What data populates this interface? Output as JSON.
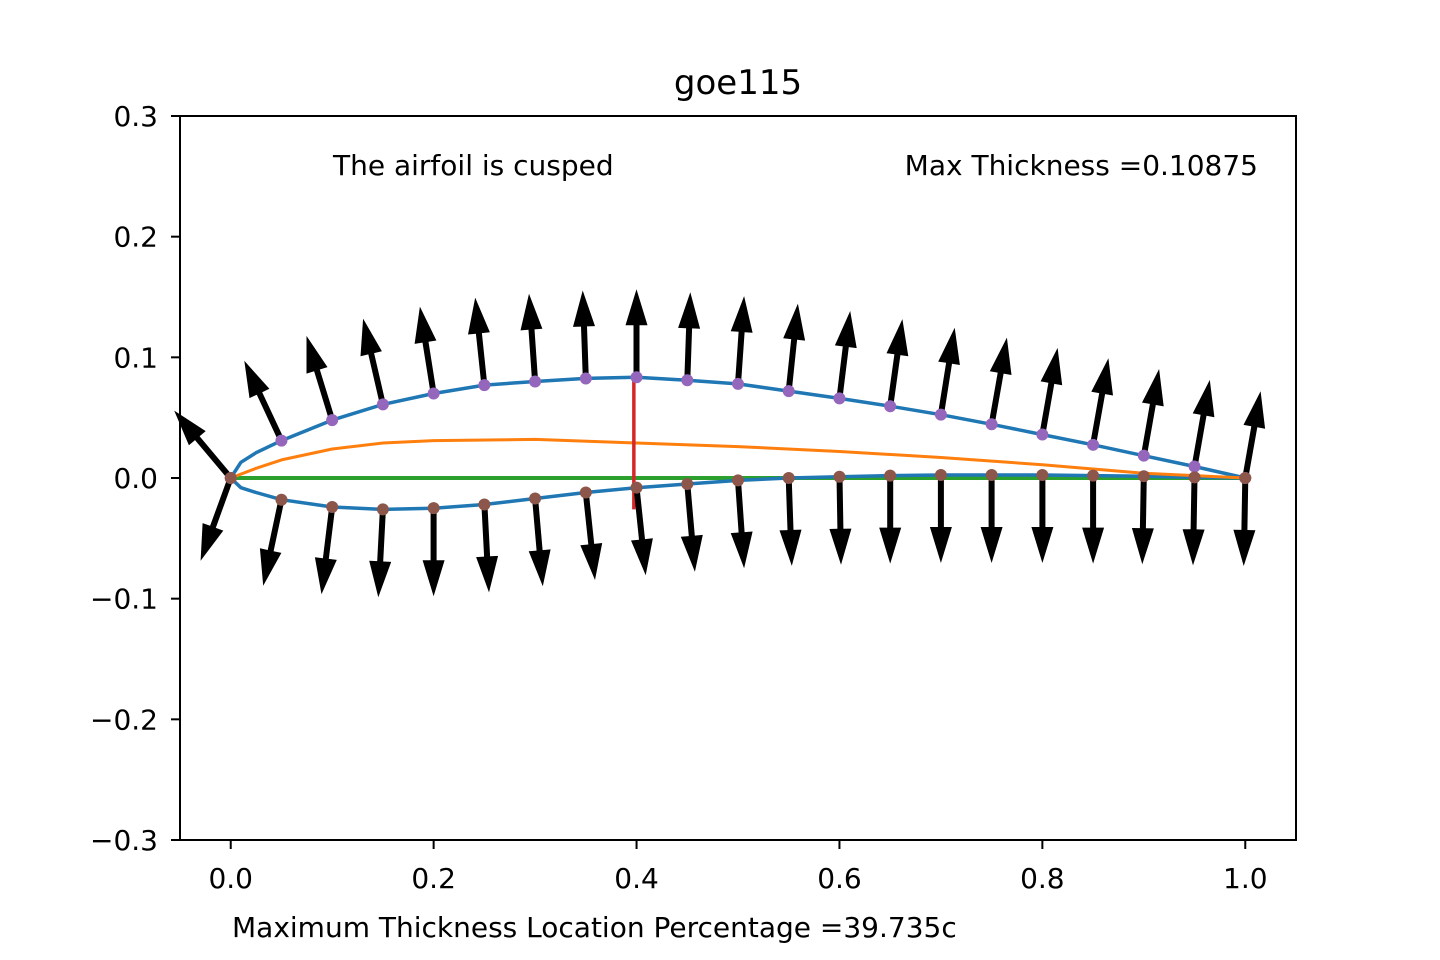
{
  "chart_data": {
    "type": "line",
    "title": "goe115",
    "xlabel": "Maximum Thickness Location Percentage =39.735c",
    "ylabel": "",
    "xlim": [
      -0.05,
      1.05
    ],
    "ylim": [
      -0.3,
      0.3
    ],
    "xticks": [
      "0.0",
      "0.2",
      "0.4",
      "0.6",
      "0.8",
      "1.0"
    ],
    "xtick_values": [
      0.0,
      0.2,
      0.4,
      0.6,
      0.8,
      1.0
    ],
    "yticks": [
      "0.3",
      "0.2",
      "0.1",
      "0.0",
      "−0.1",
      "−0.2",
      "−0.3"
    ],
    "ytick_values": [
      0.3,
      0.2,
      0.1,
      0.0,
      -0.1,
      -0.2,
      -0.3
    ],
    "grid": false,
    "annotations": {
      "cusped": "The airfoil is cusped",
      "max_thickness": "Max Thickness =0.10875"
    },
    "colors": {
      "profile": "#1f77b4",
      "camber": "#ff7f0e",
      "chord": "#2ca02c",
      "thickness_line": "#d62728",
      "upper_points": "#9467bd",
      "lower_points": "#8c564b",
      "normals": "#000000"
    },
    "series": [
      {
        "key": "upper",
        "x": [
          0.0,
          0.01,
          0.025,
          0.05,
          0.1,
          0.15,
          0.2,
          0.25,
          0.3,
          0.35,
          0.4,
          0.45,
          0.5,
          0.55,
          0.6,
          0.65,
          0.7,
          0.75,
          0.8,
          0.85,
          0.9,
          0.95,
          1.0
        ],
        "y": [
          0.0,
          0.013,
          0.021,
          0.031,
          0.048,
          0.061,
          0.07,
          0.077,
          0.08,
          0.0825,
          0.0835,
          0.081,
          0.078,
          0.072,
          0.066,
          0.0595,
          0.0525,
          0.0445,
          0.036,
          0.0275,
          0.0185,
          0.0095,
          0.0
        ]
      },
      {
        "key": "lower",
        "x": [
          0.0,
          0.01,
          0.025,
          0.05,
          0.1,
          0.15,
          0.2,
          0.25,
          0.3,
          0.35,
          0.4,
          0.45,
          0.5,
          0.55,
          0.6,
          0.65,
          0.7,
          0.75,
          0.8,
          0.85,
          0.9,
          0.95,
          1.0
        ],
        "y": [
          0.0,
          -0.008,
          -0.012,
          -0.018,
          -0.024,
          -0.026,
          -0.025,
          -0.022,
          -0.017,
          -0.012,
          -0.008,
          -0.005,
          -0.002,
          0.0,
          0.001,
          0.002,
          0.0025,
          0.0025,
          0.0025,
          0.002,
          0.0015,
          0.0005,
          0.0
        ]
      },
      {
        "key": "camber",
        "x": [
          0.0,
          0.025,
          0.05,
          0.1,
          0.15,
          0.2,
          0.3,
          0.4,
          0.5,
          0.6,
          0.7,
          0.8,
          0.9,
          1.0
        ],
        "y": [
          0.0,
          0.008,
          0.015,
          0.024,
          0.029,
          0.031,
          0.032,
          0.029,
          0.026,
          0.022,
          0.017,
          0.011,
          0.004,
          0.0
        ]
      },
      {
        "key": "chord",
        "x": [
          0.0,
          1.0
        ],
        "y": [
          0.0,
          0.0
        ]
      }
    ],
    "upper_markers": {
      "x": [
        0.0,
        0.05,
        0.1,
        0.15,
        0.2,
        0.25,
        0.3,
        0.35,
        0.4,
        0.45,
        0.5,
        0.55,
        0.6,
        0.65,
        0.7,
        0.75,
        0.8,
        0.85,
        0.9,
        0.95,
        1.0
      ],
      "y": [
        0.0,
        0.031,
        0.048,
        0.061,
        0.07,
        0.077,
        0.08,
        0.0825,
        0.0835,
        0.081,
        0.078,
        0.072,
        0.066,
        0.0595,
        0.0525,
        0.0445,
        0.036,
        0.0275,
        0.0185,
        0.0095,
        0.0
      ]
    },
    "lower_markers": {
      "x": [
        0.0,
        0.05,
        0.1,
        0.15,
        0.2,
        0.25,
        0.3,
        0.35,
        0.4,
        0.45,
        0.5,
        0.55,
        0.6,
        0.65,
        0.7,
        0.75,
        0.8,
        0.85,
        0.9,
        0.95,
        1.0
      ],
      "y": [
        0.0,
        -0.018,
        -0.024,
        -0.026,
        -0.025,
        -0.022,
        -0.017,
        -0.012,
        -0.008,
        -0.005,
        -0.002,
        0.0,
        0.001,
        0.002,
        0.0025,
        0.0025,
        0.0025,
        0.002,
        0.0015,
        0.0005,
        0.0
      ]
    },
    "max_thickness_line": {
      "x": 0.39735,
      "y": [
        -0.026,
        0.0835
      ]
    },
    "normal_vectors": {
      "upper": [
        {
          "x": 0.0,
          "y": 0.0,
          "angle_deg": 130
        },
        {
          "x": 0.05,
          "y": 0.031,
          "angle_deg": 115
        },
        {
          "x": 0.1,
          "y": 0.048,
          "angle_deg": 107
        },
        {
          "x": 0.15,
          "y": 0.061,
          "angle_deg": 103
        },
        {
          "x": 0.2,
          "y": 0.07,
          "angle_deg": 99
        },
        {
          "x": 0.25,
          "y": 0.077,
          "angle_deg": 96
        },
        {
          "x": 0.3,
          "y": 0.08,
          "angle_deg": 94
        },
        {
          "x": 0.35,
          "y": 0.0825,
          "angle_deg": 92
        },
        {
          "x": 0.4,
          "y": 0.0835,
          "angle_deg": 90
        },
        {
          "x": 0.45,
          "y": 0.081,
          "angle_deg": 88
        },
        {
          "x": 0.5,
          "y": 0.078,
          "angle_deg": 86
        },
        {
          "x": 0.55,
          "y": 0.072,
          "angle_deg": 84
        },
        {
          "x": 0.6,
          "y": 0.066,
          "angle_deg": 83
        },
        {
          "x": 0.65,
          "y": 0.0595,
          "angle_deg": 82
        },
        {
          "x": 0.7,
          "y": 0.0525,
          "angle_deg": 81
        },
        {
          "x": 0.75,
          "y": 0.0445,
          "angle_deg": 80
        },
        {
          "x": 0.8,
          "y": 0.036,
          "angle_deg": 80
        },
        {
          "x": 0.85,
          "y": 0.0275,
          "angle_deg": 80
        },
        {
          "x": 0.9,
          "y": 0.0185,
          "angle_deg": 80
        },
        {
          "x": 0.95,
          "y": 0.0095,
          "angle_deg": 80
        },
        {
          "x": 1.0,
          "y": 0.0,
          "angle_deg": 80
        }
      ],
      "lower": [
        {
          "x": 0.0,
          "y": 0.0,
          "angle_deg": 250
        },
        {
          "x": 0.05,
          "y": -0.018,
          "angle_deg": 258
        },
        {
          "x": 0.1,
          "y": -0.024,
          "angle_deg": 263
        },
        {
          "x": 0.15,
          "y": -0.026,
          "angle_deg": 267
        },
        {
          "x": 0.2,
          "y": -0.025,
          "angle_deg": 270
        },
        {
          "x": 0.25,
          "y": -0.022,
          "angle_deg": 273
        },
        {
          "x": 0.3,
          "y": -0.017,
          "angle_deg": 275
        },
        {
          "x": 0.35,
          "y": -0.012,
          "angle_deg": 276
        },
        {
          "x": 0.4,
          "y": -0.008,
          "angle_deg": 276
        },
        {
          "x": 0.45,
          "y": -0.005,
          "angle_deg": 275
        },
        {
          "x": 0.5,
          "y": -0.002,
          "angle_deg": 274
        },
        {
          "x": 0.55,
          "y": 0.0,
          "angle_deg": 272
        },
        {
          "x": 0.6,
          "y": 0.001,
          "angle_deg": 271
        },
        {
          "x": 0.65,
          "y": 0.002,
          "angle_deg": 270
        },
        {
          "x": 0.7,
          "y": 0.0025,
          "angle_deg": 270
        },
        {
          "x": 0.75,
          "y": 0.0025,
          "angle_deg": 270
        },
        {
          "x": 0.8,
          "y": 0.0025,
          "angle_deg": 270
        },
        {
          "x": 0.85,
          "y": 0.002,
          "angle_deg": 270
        },
        {
          "x": 0.9,
          "y": 0.0015,
          "angle_deg": 269
        },
        {
          "x": 0.95,
          "y": 0.0005,
          "angle_deg": 269
        },
        {
          "x": 1.0,
          "y": 0.0,
          "angle_deg": 269
        }
      ]
    }
  }
}
